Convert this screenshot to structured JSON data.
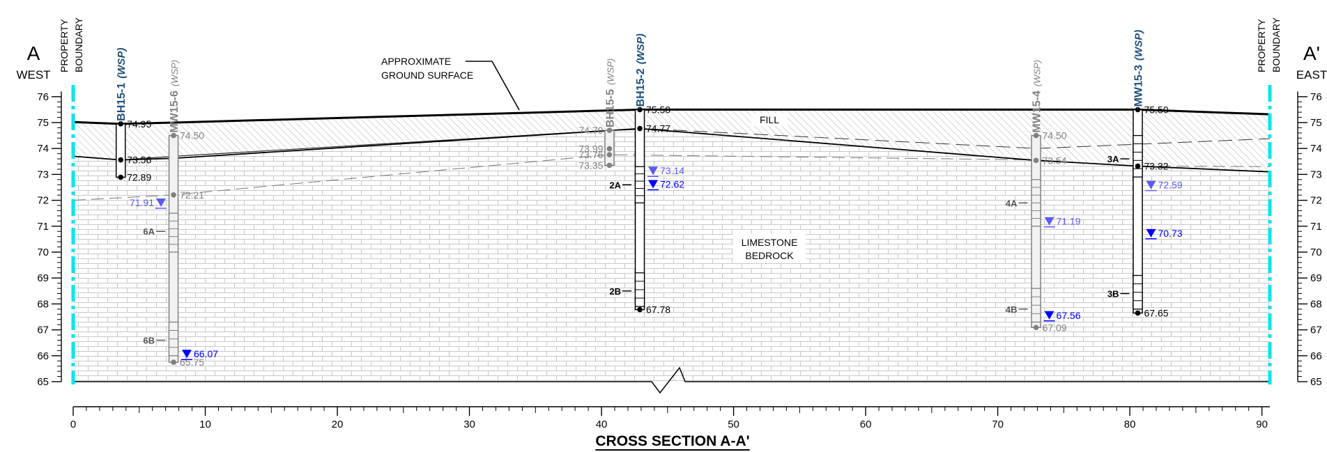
{
  "title": "CROSS SECTION A-A'",
  "ends": {
    "left": {
      "letter": "A",
      "direction": "WEST",
      "boundary": [
        "PROPERTY",
        "BOUNDARY"
      ]
    },
    "right": {
      "letter": "A'",
      "direction": "EAST",
      "boundary": [
        "PROPERTY",
        "BOUNDARY"
      ]
    }
  },
  "labels": {
    "ground_surface": [
      "APPROXIMATE",
      "GROUND SURFACE"
    ],
    "fill": "FILL",
    "bedrock": [
      "LIMESTONE",
      "BEDROCK"
    ]
  },
  "axes": {
    "elevation_ticks": [
      65,
      66,
      67,
      68,
      69,
      70,
      71,
      72,
      73,
      74,
      75,
      76
    ],
    "distance_ticks": [
      0,
      10,
      20,
      30,
      40,
      50,
      60,
      70,
      80,
      90
    ],
    "elevation_range": [
      65,
      76
    ],
    "distance_range": [
      0,
      90
    ]
  },
  "colors": {
    "boundary": "#00e5ee",
    "wsp_label": "#1f4e79",
    "other_label": "#808080",
    "water_primary": "#0000ff",
    "water_light": "#5b5bf0",
    "hatch": "#b3b3b3",
    "brick": "#c8c8c8"
  },
  "ground_surface": [
    [
      0,
      75.02
    ],
    [
      3.6,
      74.95
    ],
    [
      7.6,
      75.0
    ],
    [
      42.9,
      75.5
    ],
    [
      80.6,
      75.5
    ],
    [
      90.6,
      75.32
    ]
  ],
  "rock_surface": [
    [
      0,
      73.7
    ],
    [
      3.6,
      73.56
    ],
    [
      7.6,
      73.62
    ],
    [
      42.9,
      74.77
    ],
    [
      72.9,
      73.54
    ],
    [
      80.6,
      73.32
    ],
    [
      90.6,
      73.1
    ]
  ],
  "fill_inner_lines": [
    [
      [
        3.6,
        73.56
      ],
      [
        7.6,
        73.7
      ],
      [
        40.6,
        74.7
      ],
      [
        43.9,
        74.75
      ]
    ],
    [
      [
        43.9,
        74.75
      ],
      [
        72.9,
        74.0
      ],
      [
        90.6,
        74.38
      ]
    ]
  ],
  "water_lines": [
    [
      [
        0,
        72.0
      ],
      [
        7.6,
        72.21
      ],
      [
        40.6,
        73.76
      ],
      [
        72.9,
        73.56
      ],
      [
        80.6,
        73.32
      ],
      [
        90.6,
        73.3
      ]
    ]
  ],
  "boreholes": [
    {
      "id": "BH15-1",
      "suffix": "(WSP)",
      "style": "wsp",
      "x": 3.6,
      "top": 74.95,
      "bottom": 72.89,
      "points": [
        {
          "e": 74.95,
          "label": "74.95"
        },
        {
          "e": 73.56,
          "label": "73.56"
        },
        {
          "e": 72.89,
          "label": "72.89"
        }
      ],
      "screens": [],
      "water": [],
      "zones": []
    },
    {
      "id": "MW15-6",
      "suffix": "(WSP)",
      "style": "other",
      "x": 7.6,
      "top": 74.5,
      "bottom": 65.75,
      "points": [
        {
          "e": 74.5,
          "label": "74.50"
        },
        {
          "e": 72.21,
          "label": "72.21"
        },
        {
          "e": 65.75,
          "label": "65.75"
        }
      ],
      "screens": [
        [
          70.0,
          71.5
        ],
        [
          66.0,
          67.3
        ]
      ],
      "water": [
        {
          "e": 71.91,
          "label": "71.91",
          "side": "left",
          "tone": "light"
        },
        {
          "e": 66.07,
          "label": "66.07",
          "side": "right",
          "tone": "primary"
        }
      ],
      "zones": [
        {
          "label": "6A",
          "e": 70.8
        },
        {
          "label": "6B",
          "e": 66.6
        }
      ]
    },
    {
      "id": "BH15-5",
      "suffix": "(WSP)",
      "style": "other",
      "x": 40.6,
      "top": 74.7,
      "bottom": 73.35,
      "points": [
        {
          "e": 74.7,
          "label": "74.70",
          "side": "left"
        },
        {
          "e": 73.99,
          "label": "73.99",
          "side": "left"
        },
        {
          "e": 73.76,
          "label": "73.76",
          "side": "left"
        },
        {
          "e": 73.35,
          "label": "73.35",
          "side": "left"
        }
      ],
      "screens": [],
      "water": [],
      "zones": []
    },
    {
      "id": "BH15-2",
      "suffix": "(WSP)",
      "style": "wsp",
      "x": 42.9,
      "top": 75.5,
      "bottom": 67.78,
      "points": [
        {
          "e": 75.5,
          "label": "75.50"
        },
        {
          "e": 74.77,
          "label": "74.77"
        },
        {
          "e": 67.78,
          "label": "67.78"
        }
      ],
      "screens": [
        [
          71.9,
          73.3
        ],
        [
          67.9,
          69.2
        ]
      ],
      "water": [
        {
          "e": 73.14,
          "label": "73.14",
          "side": "right",
          "tone": "light"
        },
        {
          "e": 72.62,
          "label": "72.62",
          "side": "right",
          "tone": "primary"
        }
      ],
      "zones": [
        {
          "label": "2A",
          "e": 72.6
        },
        {
          "label": "2B",
          "e": 68.5
        }
      ]
    },
    {
      "id": "MW15-4",
      "suffix": "(WSP)",
      "style": "other",
      "x": 72.9,
      "top": 74.5,
      "bottom": 67.09,
      "points": [
        {
          "e": 74.5,
          "label": "74.50"
        },
        {
          "e": 73.54,
          "label": "73.54"
        },
        {
          "e": 67.09,
          "label": "67.09"
        }
      ],
      "screens": [
        [
          71.0,
          72.8
        ],
        [
          67.3,
          68.6
        ]
      ],
      "water": [
        {
          "e": 71.19,
          "label": "71.19",
          "side": "right",
          "tone": "light"
        },
        {
          "e": 67.56,
          "label": "67.56",
          "side": "right",
          "tone": "primary"
        }
      ],
      "zones": [
        {
          "label": "4A",
          "e": 71.9
        },
        {
          "label": "4B",
          "e": 67.8
        }
      ]
    },
    {
      "id": "MW15-3",
      "suffix": "(WSP)",
      "style": "wsp",
      "x": 80.6,
      "top": 75.5,
      "bottom": 67.65,
      "points": [
        {
          "e": 75.5,
          "label": "75.50"
        },
        {
          "e": 73.32,
          "label": "73.32"
        },
        {
          "e": 67.65,
          "label": "67.65"
        }
      ],
      "screens": [
        [
          72.9,
          74.5
        ],
        [
          67.8,
          69.1
        ]
      ],
      "water": [
        {
          "e": 72.59,
          "label": "72.59",
          "side": "right",
          "tone": "light"
        },
        {
          "e": 70.73,
          "label": "70.73",
          "side": "right",
          "tone": "primary"
        }
      ],
      "zones": [
        {
          "label": "3A",
          "e": 73.6
        },
        {
          "label": "3B",
          "e": 68.4
        }
      ]
    }
  ]
}
